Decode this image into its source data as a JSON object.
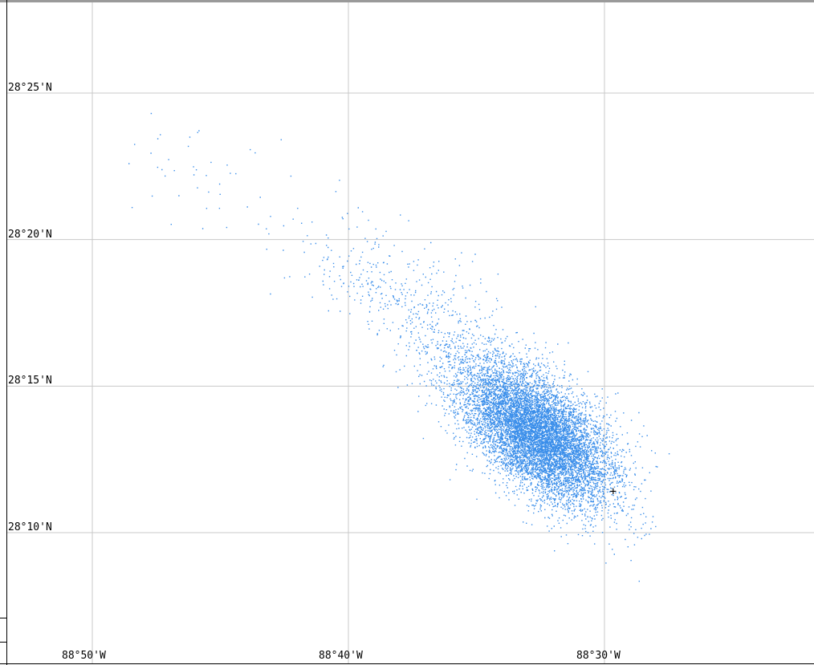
{
  "map": {
    "latitude_labels": [
      "28°25'N",
      "28°20'N",
      "28°15'N",
      "28°10'N"
    ],
    "longitude_labels": [
      "88°50'W",
      "88°40'W",
      "88°30'W"
    ],
    "grid": true,
    "colors": {
      "background": "#ffffff",
      "grid": "#c8c8c8",
      "frame": "#000000",
      "particles": "#3a8eea",
      "marker": "#000000"
    },
    "marker": {
      "symbol": "+",
      "longitude": "88°29'40\"W",
      "latitude": "28°11'25\"N"
    },
    "particle_clusters": [
      {
        "name": "dense-plume",
        "lon_center": -88.5433,
        "lat_center": 28.2225,
        "count": 9000,
        "spread_lon": 0.028,
        "spread_lat": 0.014,
        "tilt_deg": 35
      },
      {
        "name": "tail",
        "lon_center": -88.6,
        "lat_center": 28.275,
        "count": 700,
        "spread_lon": 0.045,
        "spread_lat": 0.016,
        "tilt_deg": 38
      },
      {
        "name": "upstream-scatter",
        "lon_center": -88.66,
        "lat_center": 28.31,
        "count": 90,
        "spread_lon": 0.03,
        "spread_lat": 0.012,
        "tilt_deg": 30
      },
      {
        "name": "northwest-patch",
        "lon_center": -88.765,
        "lat_center": 28.372,
        "count": 40,
        "spread_lon": 0.022,
        "spread_lat": 0.014,
        "tilt_deg": 0
      }
    ]
  }
}
